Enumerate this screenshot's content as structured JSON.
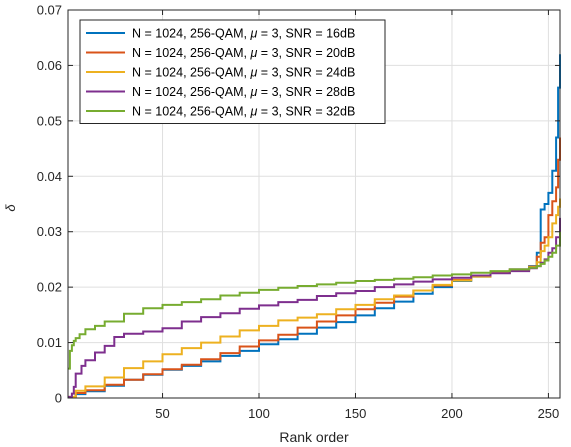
{
  "chart_data": {
    "type": "line",
    "title": "",
    "xlabel": "Rank order",
    "ylabel": "δ",
    "xlim": [
      1,
      256
    ],
    "ylim": [
      0,
      0.07
    ],
    "xticks": [
      50,
      100,
      150,
      200,
      250
    ],
    "yticks": [
      0,
      0.01,
      0.02,
      0.03,
      0.04,
      0.05,
      0.06,
      0.07
    ],
    "xtick_labels": [
      "50",
      "100",
      "150",
      "200",
      "250"
    ],
    "ytick_labels": [
      "0",
      "0.01",
      "0.02",
      "0.03",
      "0.04",
      "0.05",
      "0.06",
      "0.07"
    ],
    "grid": true,
    "legend_position": "top-left",
    "series": [
      {
        "name": "N = 1024, 256-QAM, μ = 3, SNR = 16dB",
        "color": "#0072BD",
        "x": [
          1,
          5,
          10,
          20,
          30,
          40,
          50,
          60,
          70,
          80,
          90,
          100,
          110,
          120,
          130,
          140,
          150,
          160,
          170,
          180,
          190,
          200,
          210,
          220,
          230,
          240,
          244,
          246,
          248,
          250,
          252,
          254,
          255,
          256
        ],
        "y": [
          0.0001,
          0.0007,
          0.0012,
          0.0022,
          0.0033,
          0.0042,
          0.0051,
          0.0058,
          0.0066,
          0.0076,
          0.0085,
          0.0097,
          0.0106,
          0.0116,
          0.0127,
          0.0137,
          0.0149,
          0.0162,
          0.0174,
          0.0188,
          0.02,
          0.0211,
          0.0219,
          0.0226,
          0.0232,
          0.0238,
          0.0262,
          0.034,
          0.035,
          0.037,
          0.041,
          0.047,
          0.056,
          0.062
        ]
      },
      {
        "name": "N = 1024, 256-QAM, μ = 3, SNR = 20dB",
        "color": "#D95319",
        "x": [
          1,
          5,
          10,
          20,
          30,
          40,
          50,
          60,
          70,
          80,
          90,
          100,
          110,
          120,
          130,
          140,
          150,
          160,
          170,
          180,
          190,
          200,
          210,
          220,
          230,
          240,
          244,
          246,
          248,
          250,
          252,
          254,
          255,
          256
        ],
        "y": [
          0.0001,
          0.0009,
          0.0014,
          0.0024,
          0.0033,
          0.0043,
          0.0052,
          0.006,
          0.007,
          0.0081,
          0.0093,
          0.0104,
          0.0114,
          0.0127,
          0.0138,
          0.0149,
          0.016,
          0.0172,
          0.0183,
          0.0194,
          0.0203,
          0.0213,
          0.0221,
          0.0227,
          0.0232,
          0.0237,
          0.0255,
          0.028,
          0.029,
          0.033,
          0.0355,
          0.038,
          0.043,
          0.047
        ]
      },
      {
        "name": "N = 1024, 256-QAM, μ = 3, SNR = 24dB",
        "color": "#EDB120",
        "x": [
          1,
          5,
          10,
          20,
          30,
          40,
          50,
          60,
          70,
          80,
          90,
          100,
          110,
          120,
          130,
          140,
          150,
          160,
          170,
          180,
          190,
          200,
          210,
          220,
          230,
          240,
          244,
          246,
          248,
          250,
          252,
          254,
          255,
          256
        ],
        "y": [
          0.0002,
          0.0013,
          0.0021,
          0.0037,
          0.0054,
          0.0066,
          0.0079,
          0.009,
          0.01,
          0.0111,
          0.0122,
          0.013,
          0.014,
          0.0145,
          0.0151,
          0.016,
          0.0168,
          0.0178,
          0.0185,
          0.0194,
          0.0204,
          0.0212,
          0.0219,
          0.0226,
          0.0231,
          0.0236,
          0.0245,
          0.0265,
          0.0275,
          0.029,
          0.0315,
          0.033,
          0.0345,
          0.036
        ]
      },
      {
        "name": "N = 1024, 256-QAM, μ = 3, SNR = 28dB",
        "color": "#7E2F8E",
        "x": [
          1,
          3,
          4,
          5,
          8,
          10,
          15,
          20,
          25,
          30,
          40,
          50,
          60,
          70,
          80,
          90,
          100,
          110,
          120,
          130,
          140,
          150,
          160,
          170,
          180,
          190,
          200,
          210,
          220,
          230,
          240,
          244,
          246,
          248,
          250,
          252,
          254,
          256
        ],
        "y": [
          0.0002,
          0.0008,
          0.002,
          0.0044,
          0.0058,
          0.0068,
          0.0082,
          0.0094,
          0.011,
          0.0116,
          0.012,
          0.0126,
          0.0138,
          0.0146,
          0.0153,
          0.0161,
          0.0167,
          0.0173,
          0.0177,
          0.0184,
          0.0189,
          0.0193,
          0.02,
          0.0205,
          0.021,
          0.0214,
          0.0217,
          0.0221,
          0.0225,
          0.0229,
          0.0234,
          0.0238,
          0.0244,
          0.025,
          0.0262,
          0.027,
          0.029,
          0.0325
        ]
      },
      {
        "name": "N = 1024, 256-QAM, μ = 3, SNR = 32dB",
        "color": "#77AC30",
        "x": [
          1,
          2,
          3,
          4,
          5,
          7,
          10,
          15,
          20,
          30,
          40,
          50,
          60,
          70,
          80,
          90,
          100,
          110,
          120,
          130,
          140,
          150,
          160,
          170,
          180,
          190,
          200,
          210,
          220,
          230,
          240,
          244,
          246,
          248,
          250,
          252,
          254,
          256
        ],
        "y": [
          0.0053,
          0.0085,
          0.0095,
          0.0103,
          0.0108,
          0.0115,
          0.0124,
          0.013,
          0.0138,
          0.0152,
          0.0162,
          0.0168,
          0.0173,
          0.0178,
          0.0185,
          0.019,
          0.0195,
          0.0199,
          0.0202,
          0.0205,
          0.0208,
          0.0211,
          0.0213,
          0.0215,
          0.0218,
          0.0221,
          0.0223,
          0.0226,
          0.0229,
          0.0232,
          0.0235,
          0.0238,
          0.0242,
          0.0248,
          0.0255,
          0.0262,
          0.0275,
          0.03
        ]
      }
    ]
  }
}
